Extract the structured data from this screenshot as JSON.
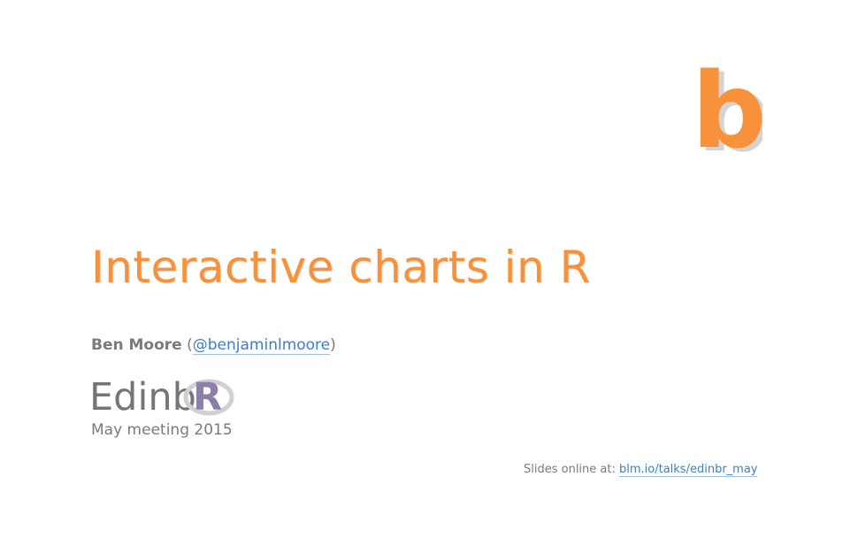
{
  "logo": {
    "letter": "b",
    "color": "#f7923a"
  },
  "title": "Interactive charts in R",
  "author": {
    "name": "Ben Moore",
    "open_paren": "(",
    "handle": "@benjaminlmoore",
    "close_paren": ")"
  },
  "group_logo": {
    "text": "Edinb",
    "r_letter": "R",
    "r_color": "#8d80a8"
  },
  "meeting": "May meeting 2015",
  "slides": {
    "label": "Slides online at: ",
    "link_text": "blm.io/talks/edinbr_may"
  },
  "colors": {
    "accent": "#f7923a",
    "text": "#7a7a7a",
    "link": "#3f7fc1"
  }
}
